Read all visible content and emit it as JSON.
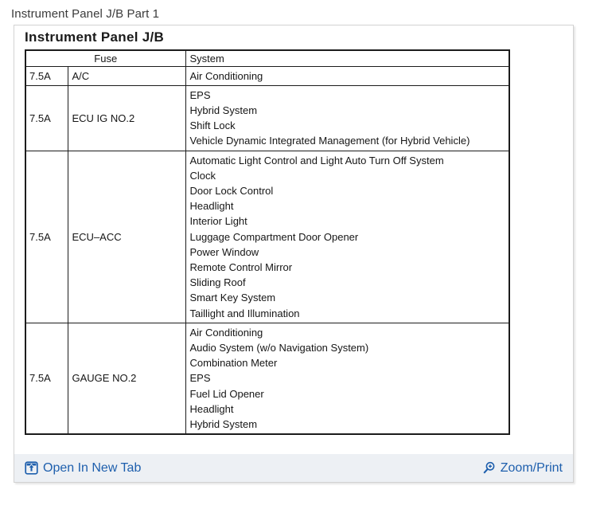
{
  "page": {
    "title": "Instrument Panel J/B Part 1"
  },
  "panel": {
    "heading": "Instrument Panel J/B",
    "table": {
      "headers": {
        "fuse": "Fuse",
        "system": "System"
      },
      "rows": [
        {
          "amp": "7.5A",
          "name": "A/C",
          "systems": [
            "Air Conditioning"
          ]
        },
        {
          "amp": "7.5A",
          "name": "ECU IG NO.2",
          "systems": [
            "EPS",
            "Hybrid System",
            "Shift Lock",
            "Vehicle Dynamic Integrated Management (for Hybrid Vehicle)"
          ]
        },
        {
          "amp": "7.5A",
          "name": "ECU–ACC",
          "systems": [
            "Automatic Light Control and Light Auto Turn Off System",
            "Clock",
            "Door Lock Control",
            "Headlight",
            "Interior Light",
            "Luggage Compartment Door Opener",
            "Power Window",
            "Remote Control Mirror",
            "Sliding Roof",
            "Smart Key System",
            "Taillight and Illumination"
          ]
        },
        {
          "amp": "7.5A",
          "name": "GAUGE NO.2",
          "systems": [
            "Air Conditioning",
            "Audio System (w/o Navigation System)",
            "Combination Meter",
            "EPS",
            "Fuel Lid Opener",
            "Headlight",
            "Hybrid System"
          ]
        }
      ]
    },
    "footer": {
      "open_in_new_tab_label": "Open In New Tab",
      "zoom_print_label": "Zoom/Print",
      "open_icon": "open-in-new-tab-icon",
      "zoom_icon": "zoom-plus-icon"
    }
  },
  "colors": {
    "link": "#1e5fad",
    "footer_bg": "#edf0f4",
    "panel_border": "#d2d2d2",
    "table_border": "#1c1c1c",
    "title_text": "#3b3b3b"
  }
}
